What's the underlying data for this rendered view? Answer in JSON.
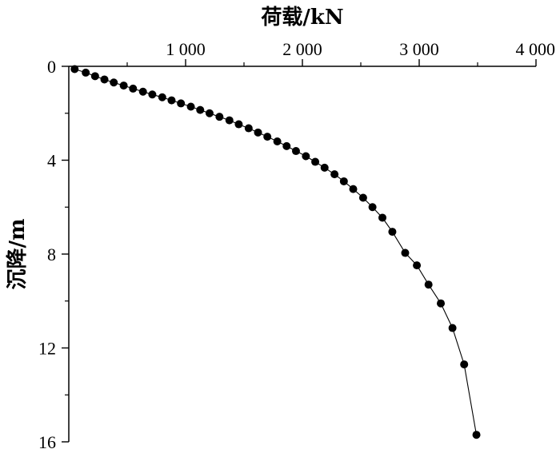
{
  "chart_data": {
    "type": "scatter",
    "title": "",
    "xlabel": "荷载/kN",
    "ylabel": "沉降/m",
    "x_axis_position": "top",
    "y_axis_inverted": true,
    "xlim": [
      0,
      4000
    ],
    "ylim": [
      0,
      16
    ],
    "x_ticks": [
      1000,
      2000,
      3000,
      4000
    ],
    "x_tick_labels": [
      "1 000",
      "2 000",
      "3 000",
      "4 000"
    ],
    "y_ticks": [
      0,
      4,
      8,
      12,
      16
    ],
    "y_tick_labels": [
      "0",
      "4",
      "8",
      "12",
      "16"
    ],
    "grid": false,
    "series": [
      {
        "marker": "circle",
        "connected": true,
        "color": "#000000",
        "x": [
          50,
          145,
          225,
          305,
          385,
          470,
          550,
          635,
          715,
          800,
          880,
          960,
          1045,
          1125,
          1205,
          1290,
          1375,
          1455,
          1540,
          1620,
          1700,
          1785,
          1865,
          1945,
          2030,
          2110,
          2190,
          2275,
          2355,
          2435,
          2520,
          2600,
          2685,
          2770,
          2880,
          2980,
          3080,
          3185,
          3285,
          3385,
          3490
        ],
        "y": [
          0.12,
          0.27,
          0.42,
          0.56,
          0.69,
          0.82,
          0.95,
          1.08,
          1.2,
          1.32,
          1.45,
          1.58,
          1.72,
          1.86,
          2.0,
          2.15,
          2.3,
          2.47,
          2.64,
          2.82,
          3.0,
          3.2,
          3.4,
          3.61,
          3.83,
          4.07,
          4.32,
          4.6,
          4.9,
          5.23,
          5.6,
          6.0,
          6.45,
          7.05,
          7.95,
          8.48,
          9.3,
          10.1,
          11.15,
          12.7,
          15.7
        ]
      }
    ]
  }
}
